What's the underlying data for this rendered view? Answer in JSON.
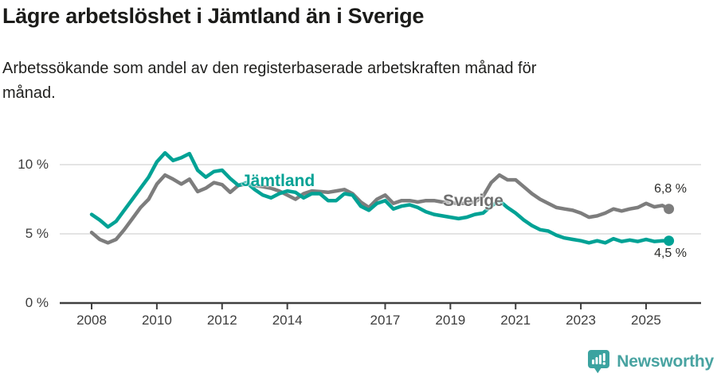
{
  "colors": {
    "jamtland": "#00a295",
    "sverige": "#7d7d7d",
    "grid": "#dcdcdc",
    "axis": "#3f3f3f",
    "text": "#1b1b19",
    "brand": "#48a3a1"
  },
  "footer": {
    "brand": "Newsworthy",
    "logo_icon": "newsworthy-barchart-pin-icon"
  },
  "chart_data": {
    "type": "line",
    "title": "Lägre arbetslöshet i Jämtland än i Sverige",
    "subtitle_lines": [
      "Arbetssökande som andel av den registerbaserade arbetskraften månad för",
      "månad."
    ],
    "unit": "%",
    "grid": "horizontal",
    "legend": "inline-labels",
    "xlim": [
      2007.1,
      2026.7
    ],
    "ylim": [
      0,
      12
    ],
    "x_ticks": [
      {
        "year": 2008,
        "label": "2008"
      },
      {
        "year": 2010,
        "label": "2010"
      },
      {
        "year": 2012,
        "label": "2012"
      },
      {
        "year": 2014,
        "label": "2014"
      },
      {
        "year": 2017,
        "label": "2017"
      },
      {
        "year": 2019,
        "label": "2019"
      },
      {
        "year": 2021,
        "label": "2021"
      },
      {
        "year": 2023,
        "label": "2023"
      },
      {
        "year": 2025,
        "label": "2025"
      }
    ],
    "y_ticks": [
      {
        "value": 0,
        "label": "0 %"
      },
      {
        "value": 5,
        "label": "5 %"
      },
      {
        "value": 10,
        "label": "10 %"
      }
    ],
    "x": [
      2008.0,
      2008.25,
      2008.5,
      2008.75,
      2009.0,
      2009.25,
      2009.5,
      2009.75,
      2010.0,
      2010.25,
      2010.5,
      2010.75,
      2011.0,
      2011.25,
      2011.5,
      2011.75,
      2012.0,
      2012.25,
      2012.5,
      2012.75,
      2013.0,
      2013.25,
      2013.5,
      2013.75,
      2014.0,
      2014.25,
      2014.5,
      2014.75,
      2015.0,
      2015.25,
      2015.5,
      2015.75,
      2016.0,
      2016.25,
      2016.5,
      2016.75,
      2017.0,
      2017.25,
      2017.5,
      2017.75,
      2018.0,
      2018.25,
      2018.5,
      2018.75,
      2019.0,
      2019.25,
      2019.5,
      2019.75,
      2020.0,
      2020.25,
      2020.5,
      2020.75,
      2021.0,
      2021.25,
      2021.5,
      2021.75,
      2022.0,
      2022.25,
      2022.5,
      2022.75,
      2023.0,
      2023.25,
      2023.5,
      2023.75,
      2024.0,
      2024.25,
      2024.5,
      2024.75,
      2025.0,
      2025.25,
      2025.5,
      2025.7
    ],
    "series": [
      {
        "id": "jamtland",
        "name": "Jämtland",
        "color": "#00a295",
        "end_label": "4,5 %",
        "end_value": 4.5,
        "values": [
          6.4,
          6.0,
          5.5,
          5.9,
          6.7,
          7.5,
          8.3,
          9.1,
          10.2,
          10.85,
          10.3,
          10.5,
          10.8,
          9.6,
          9.1,
          9.5,
          9.6,
          9.0,
          8.5,
          8.7,
          8.2,
          7.8,
          7.6,
          7.9,
          8.1,
          8.0,
          7.6,
          7.9,
          7.9,
          7.4,
          7.4,
          7.9,
          7.8,
          7.0,
          6.7,
          7.2,
          7.4,
          6.8,
          7.0,
          7.1,
          6.9,
          6.6,
          6.4,
          6.3,
          6.2,
          6.1,
          6.2,
          6.4,
          6.5,
          7.0,
          7.4,
          6.9,
          6.5,
          6.0,
          5.6,
          5.3,
          5.2,
          4.9,
          4.7,
          4.6,
          4.5,
          4.35,
          4.5,
          4.35,
          4.65,
          4.45,
          4.55,
          4.45,
          4.6,
          4.45,
          4.5,
          4.5
        ]
      },
      {
        "id": "sverige",
        "name": "Sverige",
        "color": "#7d7d7d",
        "end_label": "6,8 %",
        "end_value": 6.8,
        "values": [
          5.1,
          4.6,
          4.35,
          4.6,
          5.3,
          6.1,
          6.9,
          7.5,
          8.6,
          9.25,
          8.95,
          8.6,
          8.95,
          8.05,
          8.3,
          8.7,
          8.55,
          8.0,
          8.5,
          8.6,
          8.5,
          8.4,
          8.3,
          8.1,
          7.8,
          7.5,
          7.9,
          8.1,
          8.05,
          8.0,
          8.1,
          8.2,
          7.9,
          7.3,
          6.9,
          7.5,
          7.8,
          7.2,
          7.4,
          7.4,
          7.3,
          7.4,
          7.4,
          7.3,
          7.25,
          7.2,
          7.2,
          7.3,
          7.7,
          8.7,
          9.25,
          8.9,
          8.9,
          8.4,
          7.9,
          7.5,
          7.2,
          6.9,
          6.8,
          6.7,
          6.5,
          6.2,
          6.3,
          6.5,
          6.8,
          6.65,
          6.8,
          6.9,
          7.2,
          6.95,
          7.05,
          6.8
        ]
      }
    ]
  }
}
